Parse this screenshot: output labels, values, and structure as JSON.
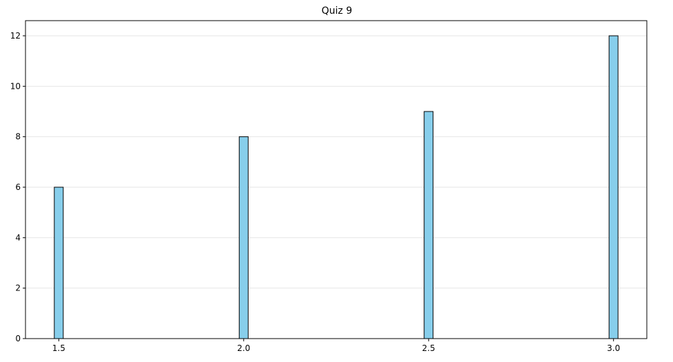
{
  "chart_data": {
    "type": "bar",
    "title": "Quiz 9",
    "xlabel": "",
    "ylabel": "",
    "x": [
      1.5,
      2.0,
      2.5,
      3.0
    ],
    "values": [
      6,
      8,
      9,
      12
    ],
    "xlim": [
      1.41,
      3.09
    ],
    "ylim": [
      0,
      12.6
    ],
    "xticks": [
      "1.5",
      "2.0",
      "2.5",
      "3.0"
    ],
    "yticks": [
      "0",
      "2",
      "4",
      "6",
      "8",
      "10",
      "12"
    ],
    "grid": "y",
    "bar_color": "#87ceeb",
    "edge_color": "#000000",
    "grid_color": "#e6e6e6"
  }
}
